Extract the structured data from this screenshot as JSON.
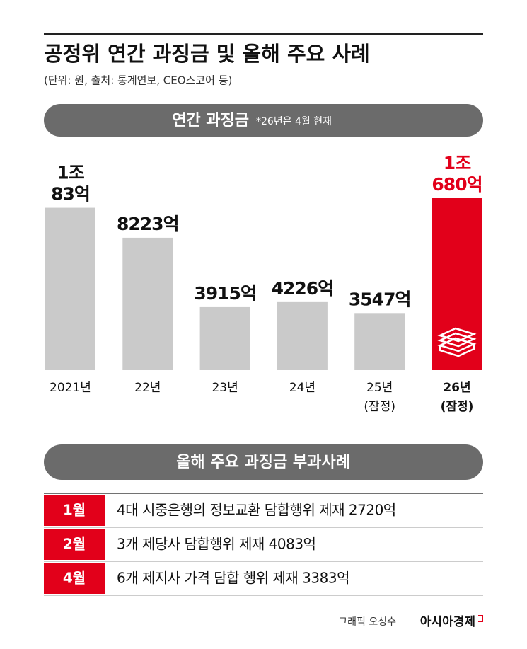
{
  "chart_data": {
    "type": "bar",
    "title": "공정위 연간 과징금 및 올해 주요 사례",
    "subtitle": "(단위: 원, 출처: 통계연보, CEO스코어 등)",
    "banner": "연간 과징금",
    "note": "*26년은 4월 현재",
    "categories": [
      "2021년",
      "22년",
      "23년",
      "24년",
      "25년 (잠정)",
      "26년 (잠정)"
    ],
    "values": [
      10083,
      8223,
      3915,
      4226,
      3547,
      10680
    ],
    "value_labels": [
      "1조 83억",
      "8223억",
      "3915억",
      "4226억",
      "3547억",
      "1조 680억"
    ],
    "colors": [
      "#cacaca",
      "#cacaca",
      "#cacaca",
      "#cacaca",
      "#cacaca",
      "#e2001a"
    ]
  },
  "cases": {
    "banner": "올해 주요 과징금 부과사례",
    "rows": [
      [
        "1월",
        "4대 시중은행의 정보교환 담합행위 제재 2720억"
      ],
      [
        "2월",
        "3개 제당사 담합행위 제재 4083억"
      ],
      [
        "4월",
        "6개 제지사 가격 담합 행위 제재 3383억"
      ]
    ]
  },
  "footer": {
    "credit": "그래픽 오성수",
    "brand": "아시아경제"
  }
}
